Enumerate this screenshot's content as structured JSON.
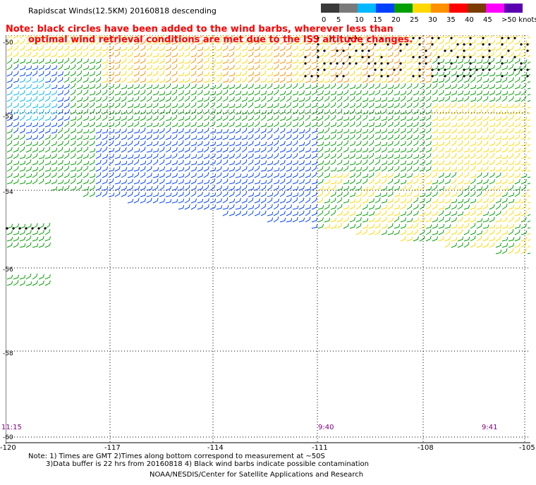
{
  "title": "Rapidscat Winds(12.5KM) 20160818 descending",
  "legend": {
    "labels": [
      "0",
      "5",
      "10",
      "15",
      "20",
      "25",
      "30",
      "35",
      "40",
      "45",
      ">50 knots"
    ],
    "colors": [
      "#3a3a3a",
      "#7a7a7a",
      "#00b8ff",
      "#0040ff",
      "#00a000",
      "#ffd800",
      "#ff9000",
      "#ff0000",
      "#7a3a00",
      "#ff00ff",
      "#5a00b0"
    ]
  },
  "note": {
    "line1": "Note: black circles have been added to the wind barbs, wherever less than",
    "line2": "optimal wind retrieval conditions are met due to the ISS altitude changes."
  },
  "y_axis": {
    "labels": [
      "-50",
      "-52",
      "-54",
      "-56",
      "-58",
      "-60"
    ]
  },
  "x_axis": {
    "labels": [
      "-120",
      "-117",
      "-114",
      "-111",
      "-108",
      "-105"
    ]
  },
  "times": [
    "11:15",
    "9:40",
    "9:41"
  ],
  "footnote": {
    "line1": "Note: 1) Times are GMT 2)Times along bottom correspond to measurement at ~50S",
    "line2": "3)Data buffer is 22 hrs from 20160818 4) Black wind barbs indicate possible contamination"
  },
  "credit": "NOAA/NESDIS/Center for Satellite Applications and Research"
}
